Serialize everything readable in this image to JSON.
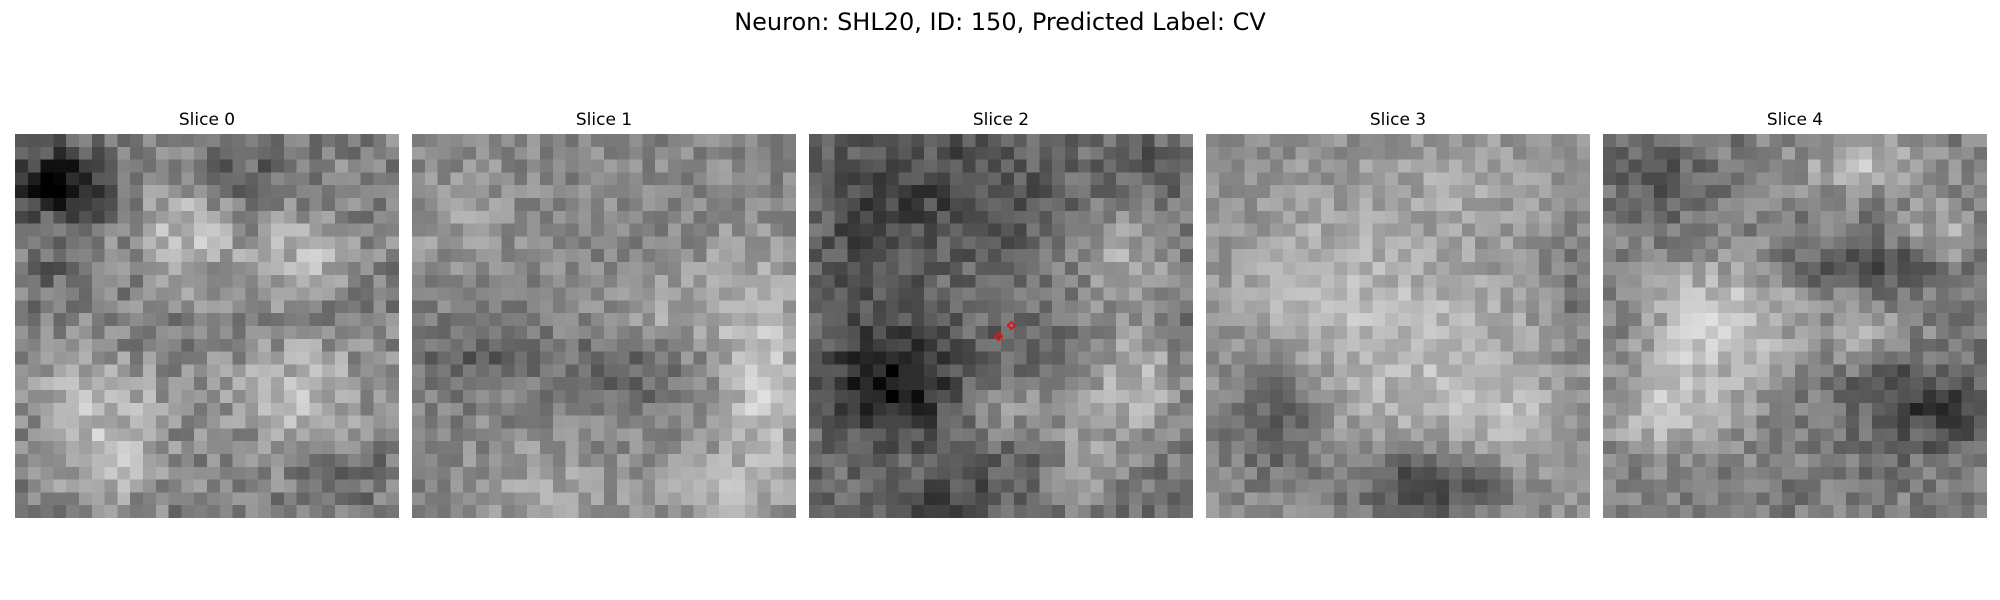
{
  "figure": {
    "title": "Neuron: SHL20, ID: 150, Predicted Label: CV"
  },
  "panels": [
    {
      "title": "Slice 0"
    },
    {
      "title": "Slice 1"
    },
    {
      "title": "Slice 2"
    },
    {
      "title": "Slice 3"
    },
    {
      "title": "Slice 4"
    }
  ],
  "colormap": "gray",
  "marker_color": "#d41a1a"
}
